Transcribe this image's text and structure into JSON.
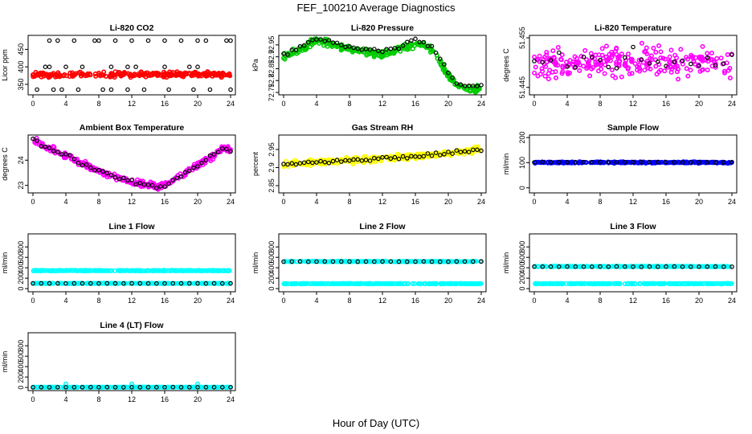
{
  "figure": {
    "title": "FEF_100210  Average Diagnostics",
    "xlabel": "Hour of Day (UTC)"
  },
  "chart_data": [
    {
      "type": "scatter",
      "title": "Li-820 CO2",
      "ylabel": "Licor ppm",
      "xlim": [
        0,
        24
      ],
      "xticks": [
        0,
        4,
        8,
        12,
        16,
        20,
        24
      ],
      "ylim": [
        320,
        490
      ],
      "yticks": [
        350,
        400,
        450
      ],
      "series": [
        {
          "name": "dense",
          "color": "#ff0000",
          "x_range": [
            0,
            24
          ],
          "values_mean": 378,
          "values_spread": 5
        },
        {
          "name": "high",
          "color": "#000000",
          "x": [
            2,
            3,
            5,
            7.5,
            8,
            10,
            12,
            14,
            16,
            18,
            20,
            21,
            23.5,
            24
          ],
          "values": [
            475,
            475,
            475,
            475,
            475,
            475,
            475,
            475,
            475,
            475,
            475,
            475,
            475,
            475
          ]
        },
        {
          "name": "mid",
          "color": "#000000",
          "x": [
            1.5,
            2,
            4,
            6,
            9.5,
            11.5,
            12.5,
            16,
            19,
            20
          ],
          "values": [
            400,
            400,
            400,
            400,
            400,
            400,
            400,
            400,
            400,
            400
          ]
        },
        {
          "name": "low",
          "color": "#000000",
          "x": [
            0.5,
            2.5,
            3.5,
            5.5,
            8.5,
            9.5,
            11.5,
            13.5,
            16.5,
            19.5,
            21.5,
            24
          ],
          "values": [
            335,
            335,
            335,
            335,
            335,
            335,
            335,
            335,
            335,
            335,
            335,
            335
          ]
        }
      ]
    },
    {
      "type": "scatter",
      "title": "Li-820 Pressure",
      "ylabel": "kPa",
      "xlim": [
        0,
        24
      ],
      "xticks": [
        0,
        4,
        8,
        12,
        16,
        20,
        24
      ],
      "ylim": [
        72.74,
        72.99
      ],
      "yticks": [
        72.75,
        72.8,
        72.85,
        72.9,
        72.95
      ],
      "series": [
        {
          "name": "dense",
          "color": "#00cc00",
          "x": [
            0,
            2,
            4,
            6,
            8,
            10,
            12,
            14,
            16,
            17,
            18,
            19,
            20,
            21,
            22,
            23,
            24
          ],
          "values": [
            72.9,
            72.93,
            72.97,
            72.95,
            72.93,
            72.92,
            72.91,
            72.93,
            72.95,
            72.95,
            72.93,
            72.88,
            72.82,
            72.78,
            72.77,
            72.76,
            72.77
          ]
        },
        {
          "name": "hourly",
          "color": "#000000",
          "x": [
            0,
            2,
            4,
            6,
            8,
            10,
            12,
            14,
            16,
            17,
            18,
            19,
            20,
            21,
            22,
            23,
            24
          ],
          "values": [
            72.91,
            72.94,
            72.98,
            72.96,
            72.94,
            72.93,
            72.92,
            72.94,
            72.97,
            72.96,
            72.94,
            72.89,
            72.83,
            72.79,
            72.78,
            72.77,
            72.78
          ]
        }
      ]
    },
    {
      "type": "scatter",
      "title": "Li-820 Temperature",
      "ylabel": "degrees C",
      "xlim": [
        0,
        24
      ],
      "xticks": [
        0,
        4,
        8,
        12,
        16,
        20,
        24
      ],
      "ylim": [
        51.4435,
        51.4555
      ],
      "yticks": [
        51.445,
        51.455
      ],
      "series": [
        {
          "name": "dense",
          "color": "#ff00ff",
          "x_range": [
            0,
            24
          ],
          "values_mean": 51.45,
          "values_spread": 0.0022
        },
        {
          "name": "hourly",
          "color": "#000000",
          "x_range": [
            0,
            24
          ],
          "values_mean": 51.45,
          "values_spread": 0.0018
        }
      ]
    },
    {
      "type": "scatter",
      "title": "Ambient Box Temperature",
      "ylabel": "degrees C",
      "xlim": [
        0,
        24
      ],
      "xticks": [
        0,
        4,
        8,
        12,
        16,
        20,
        24
      ],
      "ylim": [
        22.7,
        25.0
      ],
      "yticks": [
        23.0,
        24.0
      ],
      "series": [
        {
          "name": "dense",
          "color": "#ff00ff",
          "x": [
            0,
            1,
            2,
            4,
            6,
            8,
            10,
            12,
            13,
            14,
            15,
            16,
            18,
            20,
            22,
            23,
            24
          ],
          "values": [
            24.85,
            24.6,
            24.45,
            24.2,
            23.85,
            23.55,
            23.35,
            23.15,
            23.08,
            23.02,
            22.95,
            23.0,
            23.4,
            23.8,
            24.2,
            24.5,
            24.4
          ]
        },
        {
          "name": "hourly",
          "color": "#000000",
          "x": [
            0,
            1,
            2,
            4,
            6,
            8,
            10,
            12,
            13,
            14,
            15,
            16,
            18,
            20,
            22,
            23,
            24
          ],
          "values": [
            24.85,
            24.6,
            24.45,
            24.2,
            23.85,
            23.55,
            23.35,
            23.15,
            23.08,
            23.02,
            22.95,
            23.0,
            23.4,
            23.8,
            24.2,
            24.5,
            24.4
          ]
        }
      ]
    },
    {
      "type": "scatter",
      "title": "Gas Stream RH",
      "ylabel": "percent",
      "xlim": [
        0,
        24
      ],
      "xticks": [
        0,
        4,
        8,
        12,
        16,
        20,
        24
      ],
      "ylim": [
        2.83,
        2.99
      ],
      "yticks": [
        2.85,
        2.9,
        2.95
      ],
      "series": [
        {
          "name": "dense",
          "color": "#ffff00",
          "x": [
            0,
            4,
            8,
            12,
            16,
            20,
            24
          ],
          "values": [
            2.91,
            2.915,
            2.92,
            2.925,
            2.93,
            2.94,
            2.95
          ]
        },
        {
          "name": "hourly",
          "color": "#000000",
          "x": [
            0,
            4,
            8,
            12,
            16,
            20,
            24
          ],
          "values": [
            2.91,
            2.915,
            2.92,
            2.925,
            2.93,
            2.94,
            2.95
          ]
        }
      ]
    },
    {
      "type": "scatter",
      "title": "Sample Flow",
      "ylabel": "ml/min",
      "xlim": [
        0,
        24
      ],
      "xticks": [
        0,
        4,
        8,
        12,
        16,
        20,
        24
      ],
      "ylim": [
        -20,
        210
      ],
      "yticks": [
        0,
        100,
        200
      ],
      "series": [
        {
          "name": "dense",
          "color": "#0000ff",
          "x_range": [
            0,
            24
          ],
          "values_mean": 101,
          "values_spread": 2
        },
        {
          "name": "hourly",
          "color": "#000000",
          "x_range": [
            0,
            24
          ],
          "values_mean": 102,
          "values_spread": 1
        }
      ]
    },
    {
      "type": "scatter",
      "title": "Line 1 Flow",
      "ylabel": "ml/min",
      "xlim": [
        0,
        24
      ],
      "xticks": [
        0,
        4,
        8,
        12,
        16,
        20,
        24
      ],
      "ylim": [
        -60,
        1050
      ],
      "yticks": [
        0,
        200,
        400,
        600,
        800
      ],
      "series": [
        {
          "name": "upper",
          "color": "#00ffff",
          "x_range": [
            0,
            24
          ],
          "values_mean": 345,
          "values_spread": 5
        },
        {
          "name": "lower",
          "color": "#00ffff",
          "x_range": [
            0,
            24
          ],
          "values_mean": 100,
          "values_spread": 3
        },
        {
          "name": "hourly",
          "color": "#000000",
          "x_range": [
            0,
            24
          ],
          "values_mean": 100,
          "values_spread": 1
        }
      ]
    },
    {
      "type": "scatter",
      "title": "Line 2 Flow",
      "ylabel": "ml/min",
      "xlim": [
        0,
        24
      ],
      "xticks": [
        0,
        4,
        8,
        12,
        16,
        20,
        24
      ],
      "ylim": [
        -60,
        1050
      ],
      "yticks": [
        0,
        200,
        400,
        600,
        800
      ],
      "series": [
        {
          "name": "upper",
          "color": "#00ffff",
          "x_range": [
            0,
            24
          ],
          "values_mean": 520,
          "values_spread": 5
        },
        {
          "name": "lower",
          "color": "#00ffff",
          "x_range": [
            0,
            24
          ],
          "values_mean": 95,
          "values_spread": 3
        },
        {
          "name": "hourly",
          "color": "#000000",
          "x_range": [
            0,
            24
          ],
          "values_mean": 518,
          "values_spread": 2
        }
      ]
    },
    {
      "type": "scatter",
      "title": "Line 3 Flow",
      "ylabel": "ml/min",
      "xlim": [
        0,
        24
      ],
      "xticks": [
        0,
        4,
        8,
        12,
        16,
        20,
        24
      ],
      "ylim": [
        -60,
        1050
      ],
      "yticks": [
        0,
        200,
        400,
        600,
        800
      ],
      "series": [
        {
          "name": "upper",
          "color": "#00ffff",
          "x_range": [
            0,
            24
          ],
          "values_mean": 425,
          "values_spread": 5
        },
        {
          "name": "lower",
          "color": "#00ffff",
          "x_range": [
            0,
            24
          ],
          "values_mean": 95,
          "values_spread": 3
        },
        {
          "name": "hourly",
          "color": "#000000",
          "x_range": [
            0,
            24
          ],
          "values_mean": 422,
          "values_spread": 2
        }
      ]
    },
    {
      "type": "scatter",
      "title": "Line 4 (LT) Flow",
      "ylabel": "ml/min",
      "xlim": [
        0,
        24
      ],
      "xticks": [
        0,
        4,
        8,
        12,
        16,
        20,
        24
      ],
      "ylim": [
        -60,
        1050
      ],
      "yticks": [
        0,
        200,
        400,
        600,
        800
      ],
      "series": [
        {
          "name": "dense",
          "color": "#00ffff",
          "x_range": [
            0,
            24
          ],
          "values_mean": 5,
          "values_spread": 2
        },
        {
          "name": "spikes",
          "color": "#00ffff",
          "x": [
            4,
            12,
            20
          ],
          "values": [
            70,
            70,
            70
          ]
        },
        {
          "name": "hourly",
          "color": "#000000",
          "x_range": [
            0,
            24
          ],
          "values_mean": 5,
          "values_spread": 1
        }
      ]
    }
  ]
}
